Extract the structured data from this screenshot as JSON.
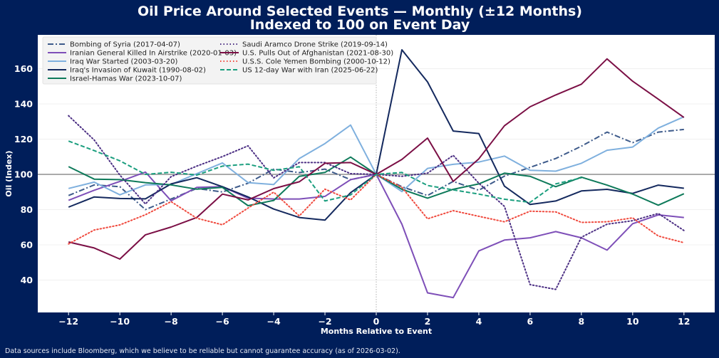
{
  "chart_data": {
    "type": "line",
    "title": [
      "Oil Price Around Selected Events — Monthly (±12 Months)",
      "Indexed to 100 on Event Day"
    ],
    "xlabel": "Months Relative to Event",
    "ylabel": "Oil (Index)",
    "xlim": [
      -13.2,
      13.2
    ],
    "ylim": [
      21.6,
      179.2
    ],
    "xticks": [
      -12,
      -10,
      -8,
      -6,
      -4,
      -2,
      0,
      2,
      4,
      6,
      8,
      10,
      12
    ],
    "xtick_labels": [
      "−12",
      "−10",
      "−8",
      "−6",
      "−4",
      "−2",
      "0",
      "2",
      "4",
      "6",
      "8",
      "10",
      "12"
    ],
    "yticks": [
      40,
      60,
      80,
      100,
      120,
      140,
      160
    ],
    "ytick_labels": [
      "40",
      "60",
      "80",
      "100",
      "120",
      "140",
      "160"
    ],
    "grid": "horizontal",
    "reference_line_y": 100,
    "reference_line_x": 0,
    "legend_placement": "top-left",
    "x": [
      -12,
      -11,
      -10,
      -9,
      -8,
      -7,
      -6,
      -5,
      -4,
      -3,
      -2,
      -1,
      0,
      1,
      2,
      3,
      4,
      5,
      6,
      7,
      8,
      9,
      10,
      11,
      12
    ],
    "series": [
      {
        "name": "Bombing of Syria (2017-04-07)",
        "color": "#3d5a8a",
        "style": "dashdot",
        "values": [
          88,
          94,
          93,
          80,
          86,
          92,
          90,
          95,
          103,
          101,
          103,
          97,
          100,
          93,
          88,
          96,
          91,
          99,
          104,
          109,
          116,
          124,
          118,
          124,
          125.5
        ]
      },
      {
        "name": "Iranian General Killed In Airstrike (2020-01-03)",
        "color": "#7e4fb8",
        "style": "solid",
        "values": [
          85.3,
          91,
          96,
          101.3,
          85,
          92.6,
          93,
          86.5,
          86,
          86,
          87.5,
          97,
          100,
          71.7,
          32.7,
          30,
          56.5,
          62.7,
          64,
          67.5,
          64,
          57,
          72,
          77,
          75.5
        ]
      },
      {
        "name": "Iraq War Started (2003-03-20)",
        "color": "#7fb0de",
        "style": "solid",
        "values": [
          92,
          95.6,
          88.4,
          94,
          94.2,
          100.4,
          106.5,
          95.3,
          94.2,
          109,
          117.5,
          128,
          100,
          90.2,
          103.4,
          105.7,
          107,
          110.4,
          102.3,
          101.8,
          106.3,
          113.7,
          115.5,
          126.3,
          132.7
        ]
      },
      {
        "name": "Iraq's Invasion of Kuwait (1990-08-02)",
        "color": "#14295e",
        "style": "solid",
        "values": [
          81.4,
          87.2,
          86.3,
          86.1,
          94.6,
          98.1,
          93,
          87.2,
          80.3,
          75.5,
          74,
          89.6,
          100,
          170.7,
          152.5,
          124.6,
          123.2,
          93.3,
          82.9,
          84.9,
          90.6,
          91.5,
          89.2,
          93.9,
          92.1
        ]
      },
      {
        "name": "Israel-Hamas War (2023-10-07)",
        "color": "#0e7a5a",
        "style": "solid",
        "values": [
          104.4,
          97.3,
          97,
          95.3,
          94,
          91.6,
          92.6,
          82.2,
          85.2,
          98.9,
          101.1,
          109.8,
          100,
          91.5,
          86.5,
          91.5,
          94.6,
          100.7,
          98.9,
          93,
          98.4,
          93.9,
          88.8,
          82.5,
          89
        ]
      },
      {
        "name": "Saudi Aramco Drone Strike (2019-09-14)",
        "color": "#4b2e83",
        "style": "dotted",
        "values": [
          133.3,
          119.5,
          99.6,
          83.2,
          98.7,
          104.7,
          110.1,
          116.2,
          98,
          106.7,
          106.7,
          100.4,
          100,
          98.9,
          100.7,
          110.8,
          95,
          81.8,
          37.4,
          34.7,
          64.3,
          71.7,
          73.7,
          77.8,
          68.1
        ]
      },
      {
        "name": "U.S. Pulls Out of Afghanistan (2021-08-30)",
        "color": "#7b0f45",
        "style": "solid",
        "values": [
          61.6,
          58.2,
          51.9,
          65.7,
          70.1,
          75.5,
          88.8,
          85.5,
          91.9,
          95.8,
          106.3,
          106.7,
          100,
          108.5,
          120.6,
          96,
          108.8,
          127.6,
          138.4,
          145.1,
          151.2,
          165.6,
          152.9,
          142.7,
          132.3
        ]
      },
      {
        "name": "U.S.S. Cole Yemen Bombing (2000-10-12)",
        "color": "#f04a3e",
        "style": "dotted",
        "values": [
          60.5,
          68.4,
          71.3,
          77.1,
          84.5,
          75.1,
          71.4,
          80.9,
          89.9,
          76.4,
          91.6,
          85.5,
          100,
          92.6,
          74.8,
          79.4,
          76.2,
          73.1,
          79.1,
          78.7,
          72.7,
          73.1,
          75.3,
          65,
          61.2
        ]
      },
      {
        "name": "US 12-day War with Iran (2025-06-22)",
        "color": "#1a9e7e",
        "style": "dashed",
        "values": [
          118.9,
          113.5,
          107.7,
          100,
          101.2,
          99.6,
          104.7,
          105.8,
          102.3,
          104.3,
          84.9,
          88.3,
          100,
          101.1,
          93.7,
          91.2,
          88.8,
          85.9,
          84.1,
          94.6,
          98,
          null,
          null,
          null,
          null
        ]
      }
    ]
  },
  "footer": "Data sources include Bloomberg, which we believe to be reliable but cannot guarantee accuracy (as of 2026-03-02)."
}
